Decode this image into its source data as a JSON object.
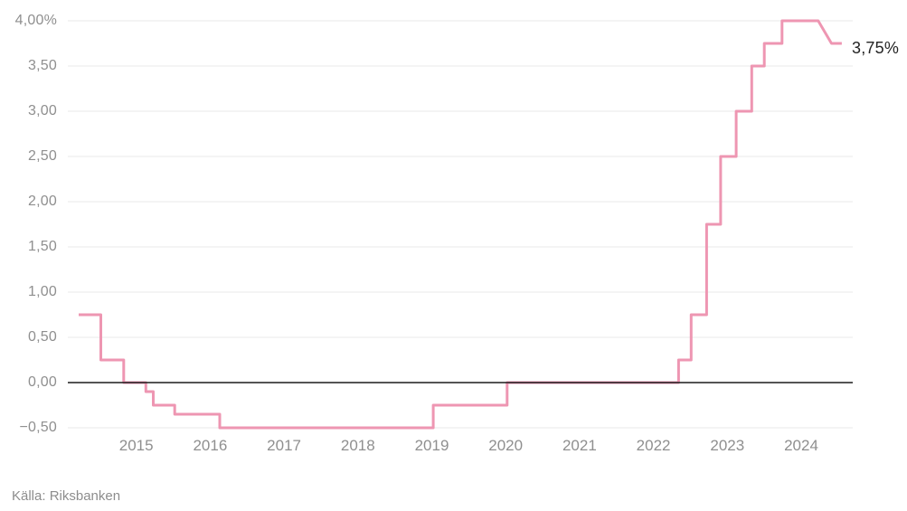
{
  "source": {
    "text": "Källa: Riksbanken"
  },
  "chart_data": {
    "type": "line",
    "line_style": "step-after",
    "title": "",
    "xlabel": "",
    "ylabel": "",
    "legend": "none",
    "grid": "horizontal",
    "end_label": "3,75%",
    "end_value": 3.75,
    "ylim": [
      -0.5,
      4.0
    ],
    "xlim": [
      2014.2,
      2024.66
    ],
    "y_ticks": [
      {
        "label": "4,00%",
        "value": 4.0
      },
      {
        "label": "3,50",
        "value": 3.5
      },
      {
        "label": "3,00",
        "value": 3.0
      },
      {
        "label": "2,50",
        "value": 2.5
      },
      {
        "label": "2,00",
        "value": 2.0
      },
      {
        "label": "1,50",
        "value": 1.5
      },
      {
        "label": "1,00",
        "value": 1.0
      },
      {
        "label": "0,50",
        "value": 0.5
      },
      {
        "label": "0,00",
        "value": 0.0
      },
      {
        "label": "−0,50",
        "value": -0.5
      }
    ],
    "x_ticks": [
      {
        "label": "2015",
        "value": 2015
      },
      {
        "label": "2016",
        "value": 2016
      },
      {
        "label": "2017",
        "value": 2017
      },
      {
        "label": "2018",
        "value": 2018
      },
      {
        "label": "2019",
        "value": 2019
      },
      {
        "label": "2020",
        "value": 2020
      },
      {
        "label": "2021",
        "value": 2021
      },
      {
        "label": "2022",
        "value": 2022
      },
      {
        "label": "2023",
        "value": 2023
      },
      {
        "label": "2024",
        "value": 2024
      }
    ],
    "points": [
      {
        "date": "2014-03",
        "x": 2014.22,
        "rate": 0.75
      },
      {
        "date": "2014-07",
        "x": 2014.52,
        "rate": 0.25
      },
      {
        "date": "2014-10",
        "x": 2014.83,
        "rate": 0.0
      },
      {
        "date": "2015-02",
        "x": 2015.13,
        "rate": -0.1
      },
      {
        "date": "2015-03",
        "x": 2015.23,
        "rate": -0.25
      },
      {
        "date": "2015-07",
        "x": 2015.52,
        "rate": -0.35
      },
      {
        "date": "2016-02",
        "x": 2016.13,
        "rate": -0.5
      },
      {
        "date": "2019-01",
        "x": 2019.02,
        "rate": -0.25
      },
      {
        "date": "2020-01",
        "x": 2020.02,
        "rate": 0.0
      },
      {
        "date": "2022-05",
        "x": 2022.34,
        "rate": 0.25
      },
      {
        "date": "2022-07",
        "x": 2022.51,
        "rate": 0.75
      },
      {
        "date": "2022-09",
        "x": 2022.72,
        "rate": 1.75
      },
      {
        "date": "2022-11",
        "x": 2022.91,
        "rate": 2.5
      },
      {
        "date": "2023-02",
        "x": 2023.12,
        "rate": 3.0
      },
      {
        "date": "2023-04",
        "x": 2023.33,
        "rate": 3.5
      },
      {
        "date": "2023-07",
        "x": 2023.5,
        "rate": 3.75
      },
      {
        "date": "2023-09",
        "x": 2023.74,
        "rate": 4.0
      },
      {
        "date": "2024-05",
        "x": 2024.41,
        "rate": 3.75,
        "ramp_from_x": 2024.23
      },
      {
        "date": "2024-07",
        "x": 2024.55,
        "rate": 3.75
      }
    ],
    "colors": {
      "line": "#ee96b2",
      "grid": "#e9e9e9",
      "zero_axis": "#1c1c1c",
      "tick_text": "#8f8f8f",
      "end_label_text": "#242424",
      "source_text": "#8d8d8d"
    }
  }
}
